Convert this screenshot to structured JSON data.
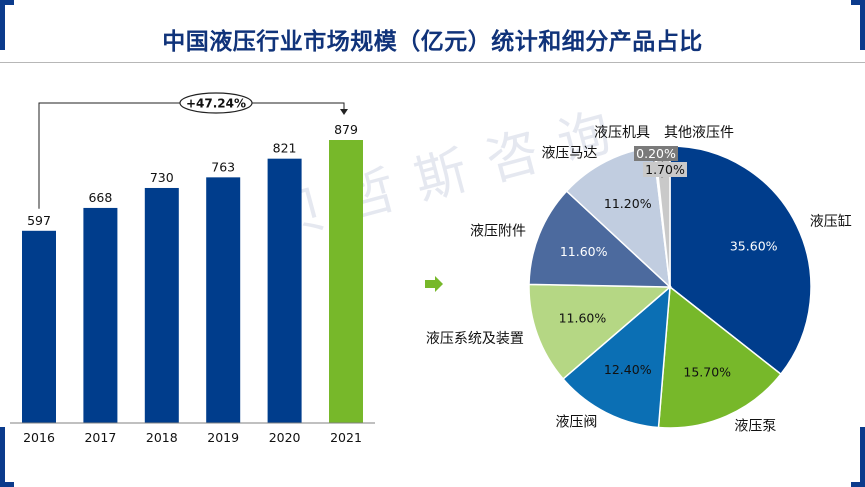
{
  "title": "中国液压行业市场规模（亿元）统计和细分产品占比",
  "watermark": "贝哲斯咨询",
  "colors": {
    "bar_primary": "#003d8c",
    "bar_highlight": "#77b82a",
    "accent_corner": "#0b3b8c",
    "arrow": "#77b82a"
  },
  "chart_data": [
    {
      "type": "bar",
      "categories": [
        "2016",
        "2017",
        "2018",
        "2019",
        "2020",
        "2021"
      ],
      "values": [
        597,
        668,
        730,
        763,
        821,
        879
      ],
      "highlight_category": "2021",
      "ylim": [
        0,
        879
      ],
      "growth_annotation": "+47.24%",
      "grid": false
    },
    {
      "type": "pie",
      "slices": [
        {
          "label": "液压缸",
          "value": 35.6,
          "display": "35.60%",
          "color": "#003d8c"
        },
        {
          "label": "液压泵",
          "value": 15.7,
          "display": "15.70%",
          "color": "#77b82a"
        },
        {
          "label": "液压阀",
          "value": 12.4,
          "display": "12.40%",
          "color": "#0b6fb4"
        },
        {
          "label": "液压系统及装置",
          "value": 11.6,
          "display": "11.60%",
          "color": "#b5d784"
        },
        {
          "label": "液压附件",
          "value": 11.6,
          "display": "11.60%",
          "color": "#4c6a9e"
        },
        {
          "label": "液压马达",
          "value": 11.2,
          "display": "11.20%",
          "color": "#c1cde0"
        },
        {
          "label": "液压机具",
          "value": 0.2,
          "display": "0.20%",
          "color": "#8c8c8c"
        },
        {
          "label": "其他液压件",
          "value": 1.7,
          "display": "1.70%",
          "color": "#c9c9c9"
        }
      ]
    }
  ]
}
